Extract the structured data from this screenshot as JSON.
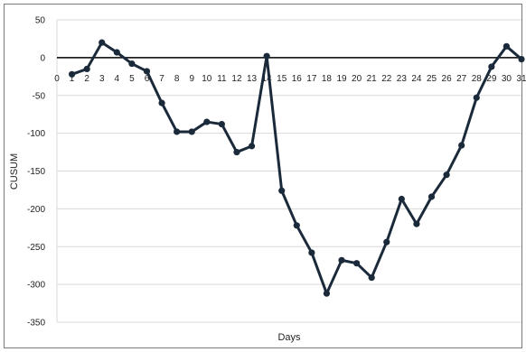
{
  "chart_data": {
    "type": "line",
    "title": "",
    "xlabel": "Days",
    "ylabel": "CUSUM",
    "x": [
      1,
      2,
      3,
      4,
      5,
      6,
      7,
      8,
      9,
      10,
      11,
      12,
      13,
      14,
      15,
      16,
      17,
      18,
      19,
      20,
      21,
      22,
      23,
      24,
      25,
      26,
      27,
      28,
      29,
      30,
      31
    ],
    "x_tick_labels": [
      "0",
      "1",
      "2",
      "3",
      "4",
      "5",
      "6",
      "7",
      "8",
      "9",
      "10",
      "11",
      "12",
      "13",
      "14",
      "15",
      "16",
      "17",
      "18",
      "19",
      "20",
      "21",
      "22",
      "23",
      "24",
      "25",
      "26",
      "27",
      "28",
      "29",
      "30",
      "31"
    ],
    "series": [
      {
        "values": [
          -22,
          -15,
          20,
          7,
          -8,
          -18,
          -60,
          -98,
          -98,
          -85,
          -88,
          -125,
          -117,
          2,
          -176,
          -222,
          -258,
          -312,
          -268,
          -272,
          -291,
          -244,
          -187,
          -220,
          -184,
          -155,
          -116,
          -53,
          -12,
          15,
          -2
        ]
      }
    ],
    "y_ticks": [
      50,
      0,
      -50,
      -100,
      -150,
      -200,
      -250,
      -300,
      -350
    ],
    "ylim": [
      -350,
      50
    ],
    "xlim": [
      0,
      31
    ],
    "grid": "horizontal",
    "line_color": "#1b2a3a",
    "zero_line_color": "#000000"
  }
}
